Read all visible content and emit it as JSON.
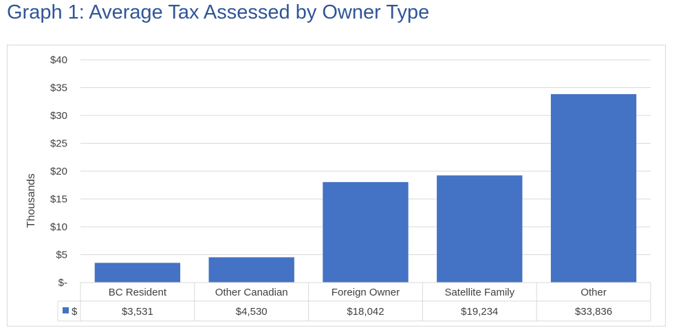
{
  "title": "Graph 1: Average Tax Assessed by Owner Type",
  "chart_data": {
    "type": "bar",
    "ylabel": "Thousands",
    "ylim": [
      0,
      40
    ],
    "ytick_values": [
      0,
      5,
      10,
      15,
      20,
      25,
      30,
      35,
      40
    ],
    "ytick_labels": [
      "$-",
      "$5",
      "$10",
      "$15",
      "$20",
      "$25",
      "$30",
      "$35",
      "$40"
    ],
    "categories": [
      "BC Resident",
      "Other Canadian",
      "Foreign Owner",
      "Satellite Family",
      "Other"
    ],
    "series": [
      {
        "name": "$",
        "values": [
          3.531,
          4.53,
          18.042,
          19.234,
          33.836
        ],
        "value_labels": [
          "$3,531",
          "$4,530",
          "$18,042",
          "$19,234",
          "$33,836"
        ],
        "color": "#4472c4"
      }
    ],
    "grid": true,
    "legend": "data-table"
  }
}
